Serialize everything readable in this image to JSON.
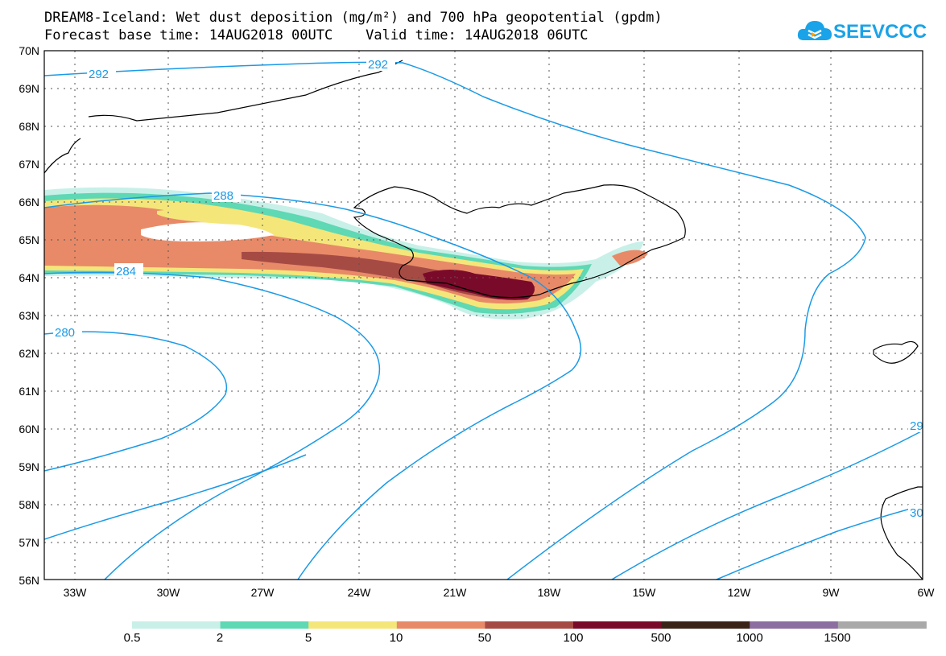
{
  "title_line1": "DREAM8-Iceland: Wet dust deposition (mg/m²) and 700 hPa geopotential (gpdm)",
  "title_line2": "Forecast base time: 14AUG2018 00UTC    Valid time: 14AUG2018 06UTC",
  "logo": {
    "text": "SEEVCCC",
    "icon": "cloud-icon",
    "color": "#1aa3e8"
  },
  "axes": {
    "lat_labels": [
      "70N",
      "69N",
      "68N",
      "67N",
      "66N",
      "65N",
      "64N",
      "63N",
      "62N",
      "61N",
      "60N",
      "59N",
      "58N",
      "57N",
      "56N"
    ],
    "lon_labels": [
      "33W",
      "30W",
      "27W",
      "24W",
      "21W",
      "18W",
      "15W",
      "12W",
      "9W",
      "6W"
    ]
  },
  "contour_labels": [
    "292",
    "292",
    "288",
    "284",
    "280",
    "29",
    "30"
  ],
  "colorbar": {
    "colors": [
      "#c8f0e8",
      "#5fd8b4",
      "#f5e67a",
      "#e88a68",
      "#a64b44",
      "#7a0a2a",
      "#3a2418",
      "#8c6ea0",
      "#a9a9a9"
    ],
    "labels": [
      "0.5",
      "2",
      "5",
      "10",
      "50",
      "100",
      "500",
      "1000",
      "1500"
    ]
  },
  "colors": {
    "contour": "#1a9ae6",
    "coast": "#000000"
  }
}
